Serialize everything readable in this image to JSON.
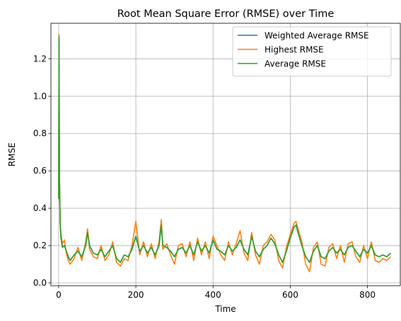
{
  "chart_data": {
    "type": "line",
    "title": "Root Mean Square Error (RMSE) over Time",
    "xlabel": "Time",
    "ylabel": "RMSE",
    "xlim": [
      -20,
      885
    ],
    "ylim": [
      -0.015,
      1.39
    ],
    "xticks": [
      0,
      200,
      400,
      600,
      800
    ],
    "yticks": [
      0.0,
      0.2,
      0.4,
      0.6,
      0.8,
      1.0,
      1.2
    ],
    "ytick_labels": [
      "0.0",
      "0.2",
      "0.4",
      "0.6",
      "0.8",
      "1.0",
      "1.2"
    ],
    "grid": true,
    "legend_position": "upper right",
    "series": [
      {
        "name": "Weighted Average RMSE",
        "color": "#1f77b4",
        "x": [
          0,
          1,
          2,
          4,
          6,
          10,
          15,
          20,
          25,
          30,
          40,
          50,
          60,
          70,
          75,
          80,
          90,
          100,
          110,
          120,
          130,
          140,
          150,
          160,
          170,
          180,
          190,
          200,
          210,
          220,
          230,
          240,
          250,
          260,
          266,
          270,
          280,
          290,
          300,
          310,
          320,
          330,
          340,
          350,
          360,
          370,
          380,
          390,
          400,
          410,
          420,
          430,
          440,
          450,
          460,
          470,
          480,
          490,
          500,
          510,
          520,
          530,
          540,
          550,
          560,
          570,
          580,
          590,
          600,
          610,
          615,
          620,
          630,
          640,
          650,
          660,
          670,
          680,
          690,
          700,
          710,
          720,
          730,
          740,
          750,
          760,
          770,
          780,
          790,
          800,
          810,
          820,
          830,
          840,
          850,
          860
        ],
        "y": [
          0.45,
          1.3,
          0.58,
          0.32,
          0.24,
          0.19,
          0.2,
          0.17,
          0.14,
          0.12,
          0.15,
          0.17,
          0.14,
          0.2,
          0.27,
          0.2,
          0.16,
          0.15,
          0.18,
          0.14,
          0.17,
          0.2,
          0.13,
          0.11,
          0.15,
          0.14,
          0.18,
          0.25,
          0.17,
          0.2,
          0.16,
          0.19,
          0.15,
          0.2,
          0.31,
          0.2,
          0.19,
          0.17,
          0.14,
          0.18,
          0.19,
          0.16,
          0.2,
          0.15,
          0.22,
          0.17,
          0.2,
          0.16,
          0.23,
          0.18,
          0.17,
          0.15,
          0.2,
          0.17,
          0.19,
          0.23,
          0.18,
          0.15,
          0.25,
          0.17,
          0.14,
          0.18,
          0.2,
          0.24,
          0.21,
          0.15,
          0.11,
          0.17,
          0.24,
          0.3,
          0.31,
          0.27,
          0.2,
          0.14,
          0.11,
          0.17,
          0.2,
          0.14,
          0.13,
          0.17,
          0.19,
          0.16,
          0.18,
          0.15,
          0.19,
          0.2,
          0.17,
          0.14,
          0.18,
          0.16,
          0.2,
          0.15,
          0.14,
          0.15,
          0.14,
          0.16
        ]
      },
      {
        "name": "Highest RMSE",
        "color": "#ff7f0e",
        "x": [
          0,
          1,
          2,
          4,
          6,
          10,
          15,
          20,
          25,
          30,
          40,
          50,
          60,
          70,
          75,
          80,
          90,
          100,
          110,
          120,
          130,
          140,
          150,
          160,
          170,
          180,
          190,
          200,
          210,
          220,
          230,
          240,
          250,
          260,
          266,
          270,
          280,
          290,
          300,
          310,
          320,
          330,
          340,
          350,
          360,
          370,
          380,
          390,
          400,
          410,
          420,
          430,
          440,
          450,
          460,
          470,
          480,
          490,
          500,
          510,
          520,
          530,
          540,
          550,
          560,
          570,
          580,
          590,
          600,
          610,
          615,
          620,
          630,
          640,
          650,
          660,
          670,
          680,
          690,
          700,
          710,
          720,
          730,
          740,
          750,
          760,
          770,
          780,
          790,
          800,
          810,
          820,
          830,
          840,
          850,
          860
        ],
        "y": [
          0.46,
          1.33,
          0.6,
          0.33,
          0.26,
          0.21,
          0.23,
          0.16,
          0.12,
          0.1,
          0.13,
          0.19,
          0.12,
          0.22,
          0.29,
          0.18,
          0.14,
          0.13,
          0.2,
          0.12,
          0.15,
          0.22,
          0.11,
          0.09,
          0.13,
          0.12,
          0.2,
          0.33,
          0.15,
          0.22,
          0.14,
          0.21,
          0.13,
          0.22,
          0.34,
          0.18,
          0.21,
          0.15,
          0.1,
          0.2,
          0.21,
          0.14,
          0.22,
          0.12,
          0.24,
          0.15,
          0.22,
          0.13,
          0.25,
          0.2,
          0.15,
          0.12,
          0.22,
          0.15,
          0.21,
          0.28,
          0.16,
          0.12,
          0.27,
          0.15,
          0.1,
          0.2,
          0.22,
          0.26,
          0.23,
          0.12,
          0.08,
          0.19,
          0.26,
          0.32,
          0.33,
          0.29,
          0.22,
          0.1,
          0.06,
          0.19,
          0.22,
          0.1,
          0.09,
          0.19,
          0.21,
          0.13,
          0.2,
          0.11,
          0.21,
          0.22,
          0.14,
          0.11,
          0.2,
          0.13,
          0.22,
          0.12,
          0.11,
          0.13,
          0.12,
          0.14
        ]
      },
      {
        "name": "Average RMSE",
        "color": "#2ca02c",
        "x": [
          0,
          1,
          2,
          4,
          6,
          10,
          15,
          20,
          25,
          30,
          40,
          50,
          60,
          70,
          75,
          80,
          90,
          100,
          110,
          120,
          130,
          140,
          150,
          160,
          170,
          180,
          190,
          200,
          210,
          220,
          230,
          240,
          250,
          260,
          266,
          270,
          280,
          290,
          300,
          310,
          320,
          330,
          340,
          350,
          360,
          370,
          380,
          390,
          400,
          410,
          420,
          430,
          440,
          450,
          460,
          470,
          480,
          490,
          500,
          510,
          520,
          530,
          540,
          550,
          560,
          570,
          580,
          590,
          600,
          610,
          615,
          620,
          630,
          640,
          650,
          660,
          670,
          680,
          690,
          700,
          710,
          720,
          730,
          740,
          750,
          760,
          770,
          780,
          790,
          800,
          810,
          820,
          830,
          840,
          850,
          860
        ],
        "y": [
          0.45,
          1.32,
          0.58,
          0.32,
          0.24,
          0.19,
          0.2,
          0.17,
          0.14,
          0.12,
          0.15,
          0.17,
          0.14,
          0.2,
          0.27,
          0.2,
          0.16,
          0.15,
          0.18,
          0.14,
          0.17,
          0.2,
          0.13,
          0.11,
          0.15,
          0.14,
          0.18,
          0.25,
          0.17,
          0.2,
          0.16,
          0.19,
          0.15,
          0.2,
          0.31,
          0.2,
          0.19,
          0.17,
          0.14,
          0.18,
          0.19,
          0.16,
          0.2,
          0.15,
          0.22,
          0.17,
          0.2,
          0.16,
          0.23,
          0.18,
          0.17,
          0.15,
          0.2,
          0.17,
          0.19,
          0.23,
          0.18,
          0.15,
          0.25,
          0.17,
          0.14,
          0.18,
          0.2,
          0.24,
          0.21,
          0.15,
          0.11,
          0.17,
          0.24,
          0.3,
          0.31,
          0.27,
          0.2,
          0.14,
          0.11,
          0.17,
          0.2,
          0.14,
          0.13,
          0.17,
          0.19,
          0.16,
          0.18,
          0.15,
          0.19,
          0.2,
          0.17,
          0.14,
          0.18,
          0.16,
          0.2,
          0.15,
          0.14,
          0.15,
          0.14,
          0.16
        ]
      }
    ]
  }
}
